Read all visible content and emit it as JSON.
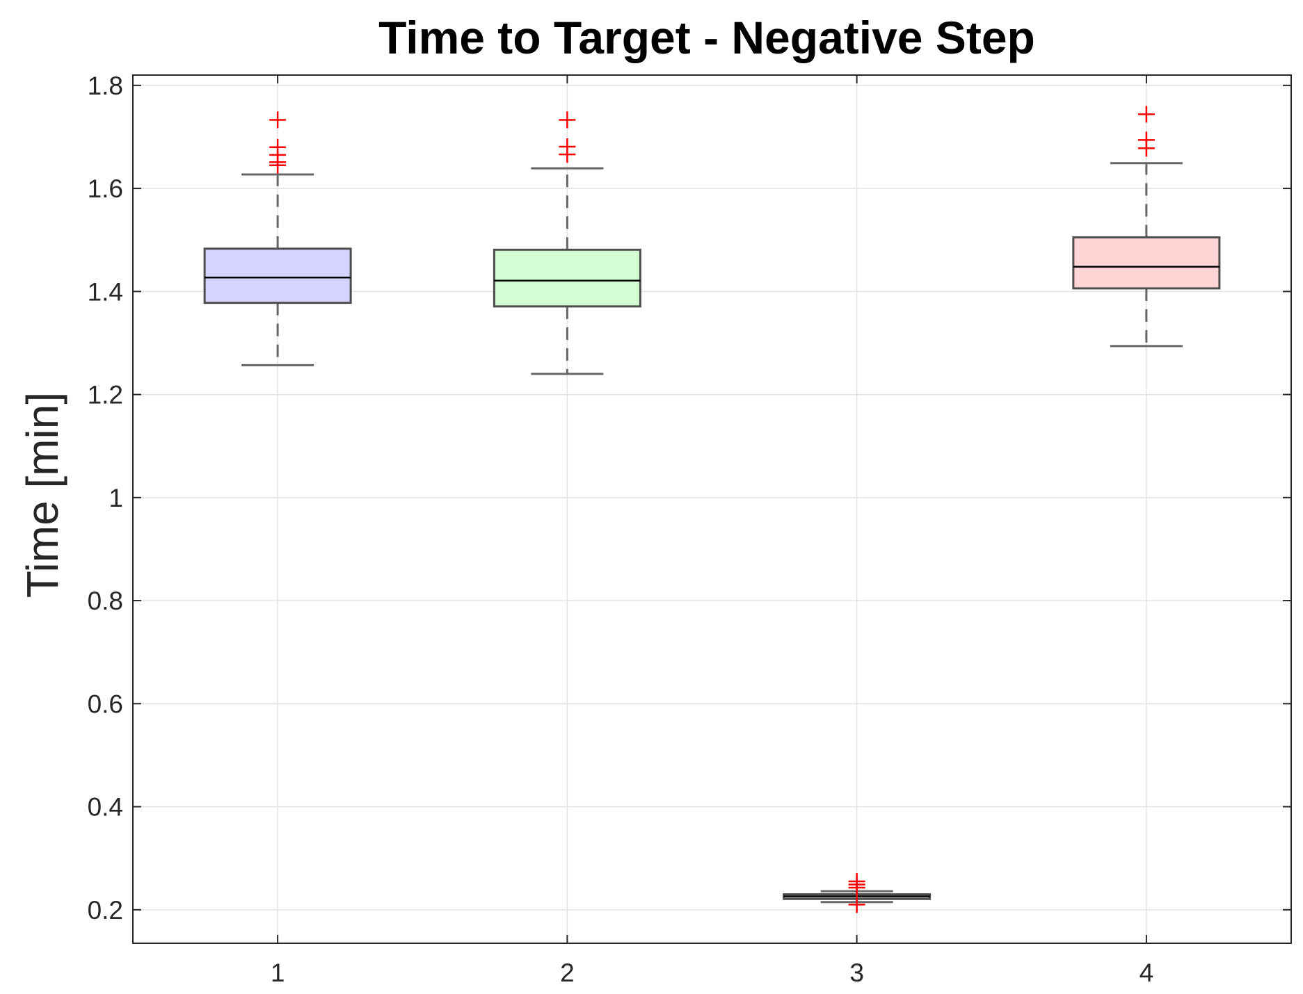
{
  "chart_data": {
    "type": "boxplot",
    "title": "Time to Target - Negative Step",
    "xlabel": "",
    "ylabel": "Time [min]",
    "categories": [
      "1",
      "2",
      "3",
      "4"
    ],
    "ylim": [
      0.135,
      1.82
    ],
    "yticks": [
      0.2,
      0.4,
      0.6,
      0.8,
      1,
      1.2,
      1.4,
      1.6,
      1.8
    ],
    "ytick_labels": [
      "0.2",
      "0.4",
      "0.6",
      "0.8",
      "1",
      "1.2",
      "1.4",
      "1.6",
      "1.8"
    ],
    "grid": true,
    "boxes": [
      {
        "category": "1",
        "q1": 1.378,
        "median": 1.427,
        "q3": 1.483,
        "whisker_low": 1.257,
        "whisker_high": 1.627,
        "outliers": [
          1.733,
          1.68,
          1.665,
          1.651,
          1.645
        ],
        "fill": "#d4d4ff"
      },
      {
        "category": "2",
        "q1": 1.371,
        "median": 1.421,
        "q3": 1.481,
        "whisker_low": 1.24,
        "whisker_high": 1.639,
        "outliers": [
          1.733,
          1.681,
          1.666
        ],
        "fill": "#d4ffd4"
      },
      {
        "category": "3",
        "q1": 0.221,
        "median": 0.226,
        "q3": 0.23,
        "whisker_low": 0.215,
        "whisker_high": 0.236,
        "outliers": [
          0.255,
          0.249,
          0.243,
          0.21
        ],
        "fill": "#b8bcb0"
      },
      {
        "category": "4",
        "q1": 1.406,
        "median": 1.448,
        "q3": 1.505,
        "whisker_low": 1.294,
        "whisker_high": 1.649,
        "outliers": [
          1.744,
          1.694,
          1.678
        ],
        "fill": "#ffd4d4"
      }
    ],
    "colors": {
      "outlier": "#ff0000",
      "box_edge": "#4d4d4d",
      "median": "#000000",
      "whisker": "#666666"
    }
  }
}
